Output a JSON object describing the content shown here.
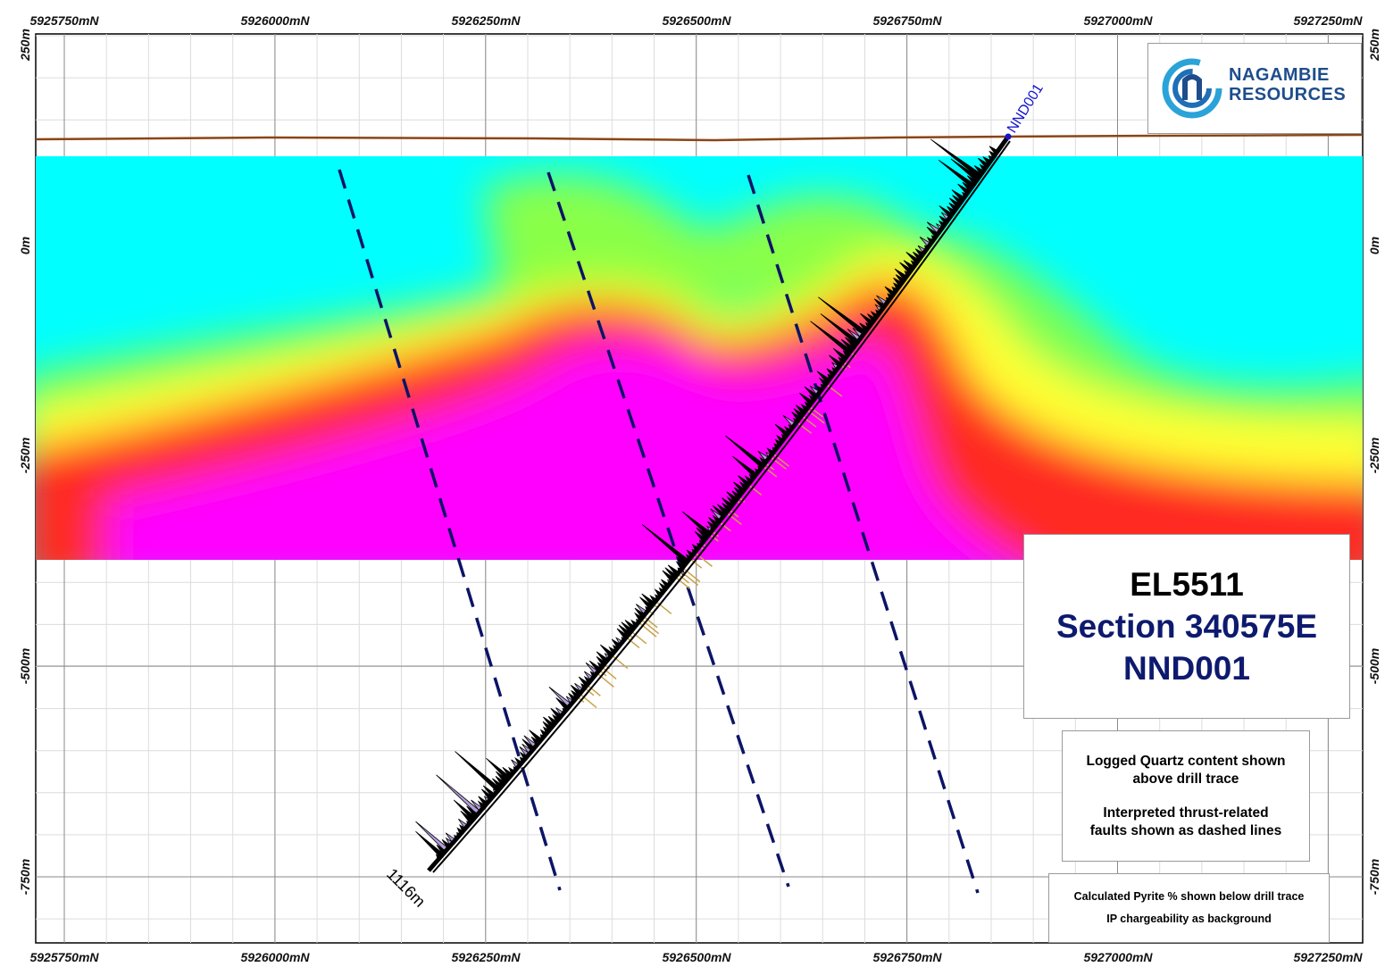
{
  "axes": {
    "northings": [
      "5925750mN",
      "5926000mN",
      "5926250mN",
      "5926500mN",
      "5926750mN",
      "5927000mN",
      "5927250mN"
    ],
    "elevations": [
      "250m",
      "0m",
      "-250m",
      "-500m",
      "-750m"
    ]
  },
  "drillhole": {
    "name": "NND001",
    "end_depth_label": "1116m"
  },
  "logo": {
    "line1": "NAGAMBIE",
    "line2": "RESOURCES"
  },
  "title": {
    "tenement": "EL5511",
    "section": "Section 340575E",
    "hole": "NND001"
  },
  "notes": {
    "quartz_1": "Logged Quartz content shown",
    "quartz_2": "above drill trace",
    "faults_1": "Interpreted thrust-related",
    "faults_2": "faults shown as dashed lines"
  },
  "legend": {
    "pyrite": "Calculated Pyrite % shown below drill trace",
    "ip": "IP chargeability as background"
  },
  "colors": {
    "chargeability_low": "#00ffff",
    "chargeability_mid_low": "#77ff55",
    "chargeability_mid": "#ffff33",
    "chargeability_high": "#ff2222",
    "chargeability_max": "#ff00ff",
    "topography": "#8b4513",
    "faults": "#0c1466",
    "drillhole_label": "#1515cc",
    "title_primary": "#000000",
    "title_accent": "#0d1a6e",
    "logo_blue": "#1e4d8c",
    "quartz_fill": "#b39ddb",
    "pyrite_fill": "#c8a24a"
  }
}
